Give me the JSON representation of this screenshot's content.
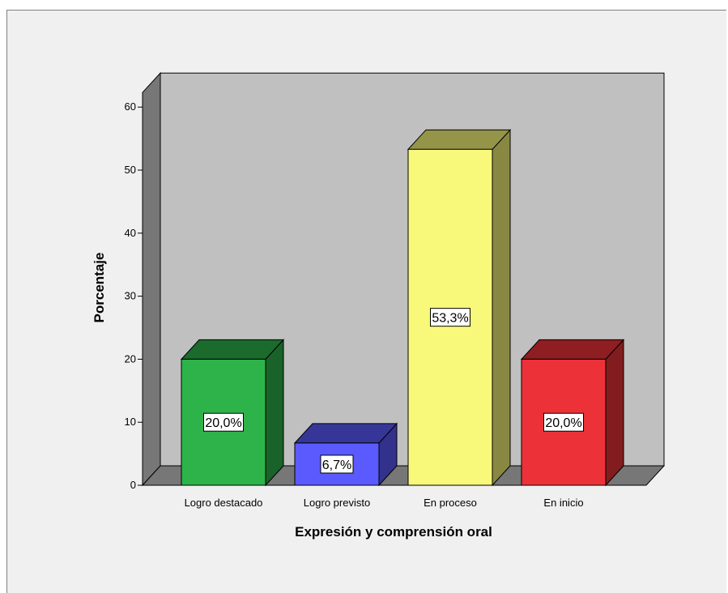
{
  "chart_data": {
    "type": "bar",
    "style": "3d",
    "categories": [
      "Logro destacado",
      "Logro previsto",
      "En proceso",
      "En inicio"
    ],
    "values": [
      20.0,
      6.7,
      53.3,
      20.0
    ],
    "data_labels": [
      "20,0%",
      "6,7%",
      "53,3%",
      "20,0%"
    ],
    "colors": [
      "#2db34a",
      "#5a5aff",
      "#f8f87a",
      "#ec3238"
    ],
    "xlabel": "Expresión y comprensión oral",
    "ylabel": "Porcentaje",
    "ylim": [
      0,
      60
    ],
    "yticks": [
      "0",
      "10",
      "20",
      "30",
      "40",
      "50",
      "60"
    ],
    "grid": false,
    "legend": "none"
  }
}
